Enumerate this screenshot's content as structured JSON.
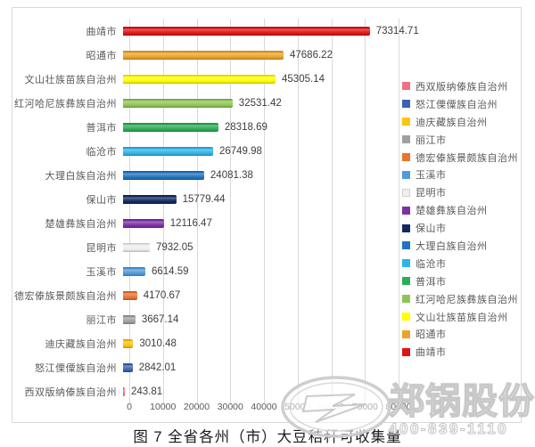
{
  "chart_data": {
    "type": "bar",
    "orientation": "horizontal",
    "title": "",
    "xlabel": "",
    "ylabel": "",
    "xlim": [
      0,
      80000
    ],
    "grid": true,
    "legend_position": "right",
    "categories": [
      "曲靖市",
      "昭通市",
      "文山壮族苗族自治州",
      "红河哈尼族彝族自治州",
      "普洱市",
      "临沧市",
      "大理白族自治州",
      "保山市",
      "楚雄彝族自治州",
      "昆明市",
      "玉溪市",
      "德宏傣族景颇族自治州",
      "丽江市",
      "迪庆藏族自治州",
      "怒江傈僳族自治州",
      "西双版纳傣族自治州"
    ],
    "values": [
      73314.71,
      47686.22,
      45305.14,
      32531.42,
      28318.69,
      26749.98,
      24081.38,
      15779.44,
      12116.47,
      7932.05,
      6614.59,
      4170.67,
      3667.14,
      3010.48,
      2842.01,
      243.81
    ],
    "value_labels": [
      "73314.71",
      "47686.22",
      "45305.14",
      "32531.42",
      "28318.69",
      "26749.98",
      "24081.38",
      "15779.44",
      "12116.47",
      "7932.05",
      "6614.59",
      "4170.67",
      "3667.14",
      "3010.48",
      "2842.01",
      "243.81"
    ],
    "bar_colors": [
      "#e01414",
      "#eba427",
      "#ffff00",
      "#8fc653",
      "#2bac55",
      "#2fb4e9",
      "#2173be",
      "#132a60",
      "#7c30a5",
      "#efefef",
      "#4e9bd8",
      "#e8742f",
      "#a0a0a0",
      "#ffc40d",
      "#3a63b0",
      "#ef7081"
    ],
    "x_ticks": [
      "0",
      "10000",
      "20000",
      "30000",
      "40000",
      "50000",
      "60000",
      "70000",
      "80000"
    ],
    "legend": [
      {
        "label": "西双版纳傣族自治州",
        "color": "#ef7081"
      },
      {
        "label": "怒江傈僳族自治州",
        "color": "#3a63b0"
      },
      {
        "label": "迪庆藏族自治州",
        "color": "#ffc40d"
      },
      {
        "label": "丽江市",
        "color": "#a0a0a0"
      },
      {
        "label": "德宏傣族景颇族自治州",
        "color": "#e8742f"
      },
      {
        "label": "玉溪市",
        "color": "#4e9bd8"
      },
      {
        "label": "昆明市",
        "color": "#efefef"
      },
      {
        "label": "楚雄彝族自治州",
        "color": "#7c30a5"
      },
      {
        "label": "保山市",
        "color": "#132a60"
      },
      {
        "label": "大理白族自治州",
        "color": "#2173be"
      },
      {
        "label": "临沧市",
        "color": "#2fb4e9"
      },
      {
        "label": "普洱市",
        "color": "#2bac55"
      },
      {
        "label": "红河哈尼族彝族自治州",
        "color": "#8fc653"
      },
      {
        "label": "文山壮族苗族自治州",
        "color": "#ffff00"
      },
      {
        "label": "昭通市",
        "color": "#eba427"
      },
      {
        "label": "曲靖市",
        "color": "#e01414"
      }
    ]
  },
  "caption": "图 7 全省各州（市）大豆秸秆可收集量",
  "watermark": {
    "brand": "郑锅股份",
    "phone": "400-839-1110",
    "logo_icon": "zg-oval-logo"
  },
  "colors": {
    "frame_border": "#d9d9d9",
    "grid": "#d9d9d9",
    "axis_text": "#595959",
    "value_text": "#3d3d3d",
    "legend_text": "#595959"
  }
}
